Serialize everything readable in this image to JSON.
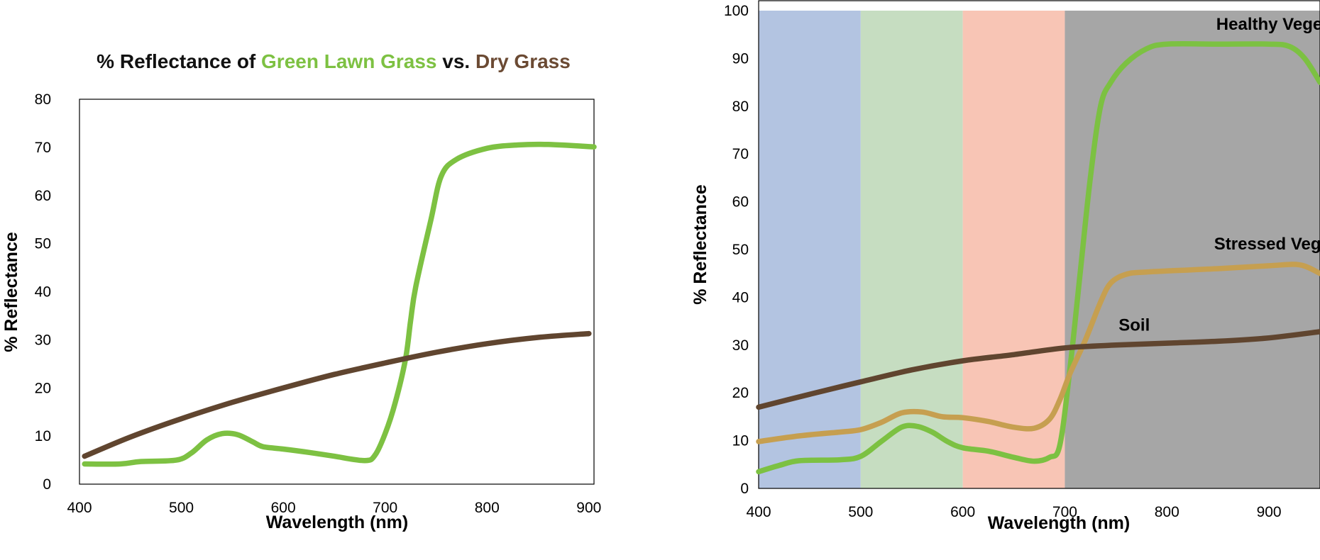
{
  "chart_data": [
    {
      "type": "line",
      "title_parts": [
        {
          "text": "% Reflectance of ",
          "color": "#111111"
        },
        {
          "text": "Green Lawn Grass",
          "color": "#7dc142"
        },
        {
          "text": " vs. ",
          "color": "#111111"
        },
        {
          "text": "Dry Grass",
          "color": "#6b4a33"
        }
      ],
      "xlabel": "Wavelength (nm)",
      "ylabel": "% Reflectance",
      "xlim": [
        400,
        905
      ],
      "ylim": [
        0,
        80
      ],
      "xticks": [
        400,
        500,
        600,
        700,
        800,
        900
      ],
      "yticks": [
        0,
        10,
        20,
        30,
        40,
        50,
        60,
        70,
        80
      ],
      "series": [
        {
          "name": "Green Lawn Grass",
          "color": "#7dc142",
          "x": [
            405,
            440,
            460,
            495,
            510,
            525,
            540,
            555,
            570,
            580,
            600,
            625,
            650,
            680,
            690,
            700,
            710,
            720,
            725,
            730,
            745,
            755,
            770,
            800,
            830,
            860,
            905
          ],
          "y": [
            4.2,
            4.2,
            4.7,
            5.0,
            6.5,
            9.2,
            10.5,
            10.3,
            8.8,
            7.8,
            7.3,
            6.6,
            5.8,
            4.9,
            6.0,
            10.5,
            17.0,
            26.0,
            34.0,
            41.0,
            55.0,
            64.0,
            67.5,
            69.8,
            70.5,
            70.6,
            70.1
          ]
        },
        {
          "name": "Dry Grass",
          "color": "#60452f",
          "x": [
            405,
            450,
            500,
            550,
            600,
            650,
            700,
            750,
            800,
            850,
            900
          ],
          "y": [
            5.8,
            9.8,
            13.6,
            17.0,
            20.0,
            22.8,
            25.2,
            27.4,
            29.2,
            30.5,
            31.3
          ]
        }
      ]
    },
    {
      "type": "line",
      "title": "",
      "xlabel": "Wavelength (nm)",
      "ylabel": "% Reflectance",
      "xlim": [
        400,
        950
      ],
      "ylim": [
        0,
        100
      ],
      "xticks": [
        400,
        500,
        600,
        700,
        800,
        900
      ],
      "yticks": [
        0,
        10,
        20,
        30,
        40,
        50,
        60,
        70,
        80,
        90,
        100
      ],
      "bands": [
        {
          "x0": 400,
          "x1": 500,
          "color": "#b3c4e1"
        },
        {
          "x0": 500,
          "x1": 600,
          "color": "#c6ddc1"
        },
        {
          "x0": 600,
          "x1": 700,
          "color": "#f8c5b5"
        },
        {
          "x0": 700,
          "x1": 950,
          "color": "#a6a6a6"
        }
      ],
      "series": [
        {
          "name": "Healthy Vegetation",
          "color": "#7cc142",
          "x": [
            400,
            420,
            440,
            480,
            500,
            520,
            540,
            555,
            570,
            585,
            600,
            625,
            650,
            670,
            685,
            695,
            705,
            715,
            725,
            735,
            745,
            760,
            780,
            800,
            850,
            900,
            920,
            935,
            950
          ],
          "y": [
            3.5,
            4.8,
            5.8,
            6.0,
            6.7,
            9.8,
            12.8,
            13.0,
            11.8,
            9.8,
            8.5,
            7.8,
            6.5,
            5.7,
            6.5,
            9.0,
            25.0,
            45.0,
            65.0,
            80.0,
            85.0,
            89.0,
            92.0,
            93.0,
            93.0,
            93.0,
            92.5,
            90.0,
            85.0
          ]
        },
        {
          "name": "Stressed Vegetation",
          "color": "#c69f50",
          "x": [
            400,
            440,
            480,
            500,
            520,
            540,
            560,
            580,
            600,
            625,
            650,
            670,
            685,
            695,
            705,
            720,
            735,
            745,
            760,
            780,
            850,
            900,
            930,
            950
          ],
          "y": [
            9.8,
            11.0,
            11.8,
            12.3,
            13.8,
            15.8,
            16.0,
            15.0,
            14.8,
            14.0,
            12.8,
            12.6,
            14.5,
            18.5,
            24.0,
            31.0,
            39.0,
            43.0,
            44.8,
            45.3,
            46.0,
            46.6,
            46.8,
            45.0
          ]
        },
        {
          "name": "Soil",
          "color": "#60452f",
          "x": [
            400,
            450,
            500,
            550,
            600,
            650,
            700,
            750,
            800,
            850,
            900,
            950
          ],
          "y": [
            17.0,
            19.7,
            22.3,
            24.8,
            26.7,
            28.0,
            29.4,
            30.0,
            30.4,
            30.8,
            31.5,
            32.8
          ]
        }
      ],
      "series_labels": [
        {
          "text": "Healthy Vegetation",
          "x": 923,
          "y": 96
        },
        {
          "text": "Stressed Vegetation",
          "x": 926,
          "y": 50
        },
        {
          "text": "Soil",
          "x": 768,
          "y": 33
        }
      ]
    }
  ]
}
